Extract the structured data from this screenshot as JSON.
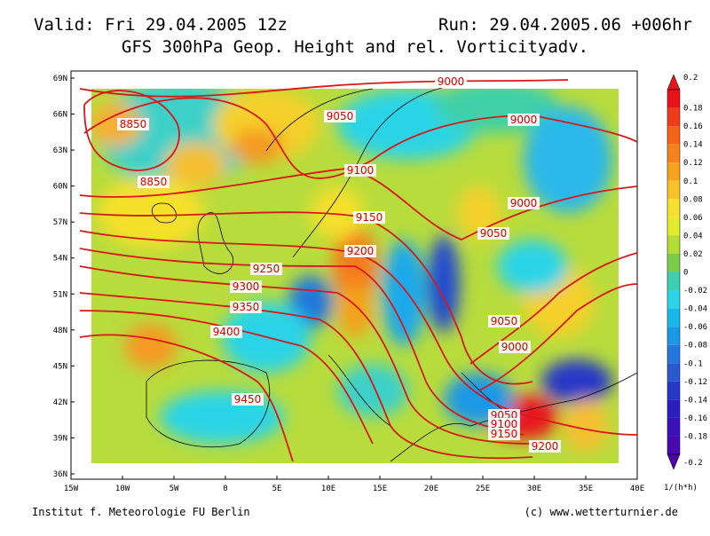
{
  "header": {
    "valid": "Valid: Fri 29.04.2005 12z",
    "run": "Run: 29.04.2005.06 +006hr",
    "title": "GFS 300hPa Geop. Height and rel. Vorticityadv."
  },
  "map": {
    "lat_labels": [
      "69N",
      "66N",
      "63N",
      "60N",
      "57N",
      "54N",
      "51N",
      "48N",
      "45N",
      "42N",
      "39N",
      "36N"
    ],
    "lon_labels": [
      "15W",
      "10W",
      "5W",
      "0",
      "5E",
      "10E",
      "15E",
      "20E",
      "25E",
      "30E",
      "35E",
      "40E"
    ],
    "contour_labels": [
      "9000",
      "9050",
      "9000",
      "8850",
      "8850",
      "9100",
      "9000",
      "9150",
      "9050",
      "9200",
      "9250",
      "9300",
      "9350",
      "9050",
      "9400",
      "9000",
      "9450",
      "9050",
      "9100",
      "9150",
      "9200"
    ]
  },
  "colorbar": {
    "labels": [
      "0.2",
      "0.18",
      "0.16",
      "0.14",
      "0.12",
      "0.1",
      "0.08",
      "0.06",
      "0.04",
      "0.02",
      "0",
      "-0.02",
      "-0.04",
      "-0.06",
      "-0.08",
      "-0.1",
      "-0.12",
      "-0.14",
      "-0.16",
      "-0.18",
      "-0.2"
    ],
    "unit": "1/(h*h)"
  },
  "footer": {
    "left": "Institut f. Meteorologie  FU Berlin",
    "right": "(c) www.wetterturnier.de"
  }
}
